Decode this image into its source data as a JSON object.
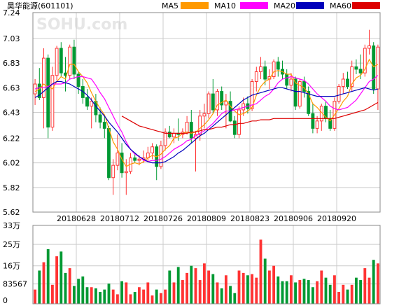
{
  "chart_data": [
    {
      "type": "candlestick",
      "title": "昊华能源(601101)",
      "watermark": "SOHU.com",
      "ylim": [
        5.62,
        7.24
      ],
      "y_ticks": [
        "7.24",
        "7.03",
        "6.83",
        "6.63",
        "6.43",
        "6.22",
        "6.02",
        "5.82",
        "5.62"
      ],
      "x_tick_labels": [
        "20180628",
        "20180712",
        "20180726",
        "20180809",
        "20180823",
        "20180906",
        "20180920"
      ],
      "legend": [
        {
          "name": "MA5",
          "color": "#ff9900"
        },
        {
          "name": "MA10",
          "color": "#ff00ff"
        },
        {
          "name": "MA20",
          "color": "#0000bb"
        },
        {
          "name": "MA60",
          "color": "#dd0000"
        }
      ],
      "up_color": "#ff3333",
      "down_color": "#009933",
      "candles": [
        {
          "o": 6.58,
          "h": 6.7,
          "l": 6.49,
          "c": 6.66
        },
        {
          "o": 6.66,
          "h": 6.79,
          "l": 6.53,
          "c": 6.55
        },
        {
          "o": 6.55,
          "h": 6.95,
          "l": 6.3,
          "c": 6.87
        },
        {
          "o": 6.87,
          "h": 6.9,
          "l": 6.22,
          "c": 6.31
        },
        {
          "o": 6.31,
          "h": 6.8,
          "l": 6.28,
          "c": 6.73
        },
        {
          "o": 6.73,
          "h": 6.97,
          "l": 6.69,
          "c": 6.95
        },
        {
          "o": 6.95,
          "h": 7.0,
          "l": 6.72,
          "c": 6.75
        },
        {
          "o": 6.75,
          "h": 6.88,
          "l": 6.6,
          "c": 6.73
        },
        {
          "o": 6.73,
          "h": 6.98,
          "l": 6.7,
          "c": 6.96
        },
        {
          "o": 6.96,
          "h": 7.02,
          "l": 6.7,
          "c": 6.74
        },
        {
          "o": 6.74,
          "h": 6.76,
          "l": 6.58,
          "c": 6.64
        },
        {
          "o": 6.64,
          "h": 6.7,
          "l": 6.5,
          "c": 6.55
        },
        {
          "o": 6.55,
          "h": 6.62,
          "l": 6.45,
          "c": 6.48
        },
        {
          "o": 6.48,
          "h": 6.55,
          "l": 6.3,
          "c": 6.52
        },
        {
          "o": 6.52,
          "h": 6.58,
          "l": 6.35,
          "c": 6.41
        },
        {
          "o": 6.41,
          "h": 6.47,
          "l": 6.3,
          "c": 6.35
        },
        {
          "o": 6.35,
          "h": 6.4,
          "l": 6.22,
          "c": 6.3
        },
        {
          "o": 6.3,
          "h": 6.32,
          "l": 5.88,
          "c": 5.9
        },
        {
          "o": 5.9,
          "h": 6.05,
          "l": 5.76,
          "c": 6.0
        },
        {
          "o": 6.0,
          "h": 6.25,
          "l": 5.96,
          "c": 6.1
        },
        {
          "o": 6.1,
          "h": 6.18,
          "l": 5.9,
          "c": 5.94
        },
        {
          "o": 5.94,
          "h": 6.05,
          "l": 5.76,
          "c": 5.95
        },
        {
          "o": 5.95,
          "h": 6.1,
          "l": 5.93,
          "c": 6.06
        },
        {
          "o": 6.06,
          "h": 6.1,
          "l": 6.02,
          "c": 6.04
        },
        {
          "o": 6.04,
          "h": 6.08,
          "l": 6.0,
          "c": 6.05
        },
        {
          "o": 6.05,
          "h": 6.12,
          "l": 6.02,
          "c": 6.06
        },
        {
          "o": 6.06,
          "h": 6.15,
          "l": 6.03,
          "c": 6.1
        },
        {
          "o": 6.1,
          "h": 6.18,
          "l": 6.05,
          "c": 6.15
        },
        {
          "o": 6.15,
          "h": 6.17,
          "l": 5.88,
          "c": 5.99
        },
        {
          "o": 5.99,
          "h": 6.2,
          "l": 5.97,
          "c": 6.16
        },
        {
          "o": 6.16,
          "h": 6.3,
          "l": 6.12,
          "c": 6.27
        },
        {
          "o": 6.27,
          "h": 6.32,
          "l": 6.22,
          "c": 6.23
        },
        {
          "o": 6.23,
          "h": 6.3,
          "l": 6.18,
          "c": 6.26
        },
        {
          "o": 6.26,
          "h": 6.38,
          "l": 6.2,
          "c": 6.25
        },
        {
          "o": 6.25,
          "h": 6.3,
          "l": 6.22,
          "c": 6.27
        },
        {
          "o": 6.27,
          "h": 6.4,
          "l": 6.25,
          "c": 6.35
        },
        {
          "o": 6.35,
          "h": 6.45,
          "l": 6.18,
          "c": 6.22
        },
        {
          "o": 6.22,
          "h": 6.28,
          "l": 5.95,
          "c": 6.25
        },
        {
          "o": 6.25,
          "h": 6.45,
          "l": 6.2,
          "c": 6.4
        },
        {
          "o": 6.4,
          "h": 6.5,
          "l": 6.3,
          "c": 6.42
        },
        {
          "o": 6.42,
          "h": 6.6,
          "l": 6.38,
          "c": 6.58
        },
        {
          "o": 6.58,
          "h": 6.7,
          "l": 6.42,
          "c": 6.45
        },
        {
          "o": 6.45,
          "h": 6.62,
          "l": 6.4,
          "c": 6.6
        },
        {
          "o": 6.6,
          "h": 6.64,
          "l": 6.45,
          "c": 6.49
        },
        {
          "o": 6.49,
          "h": 6.58,
          "l": 6.3,
          "c": 6.52
        },
        {
          "o": 6.52,
          "h": 6.6,
          "l": 6.35,
          "c": 6.36
        },
        {
          "o": 6.36,
          "h": 6.4,
          "l": 6.22,
          "c": 6.25
        },
        {
          "o": 6.25,
          "h": 6.48,
          "l": 6.22,
          "c": 6.45
        },
        {
          "o": 6.45,
          "h": 6.55,
          "l": 6.4,
          "c": 6.5
        },
        {
          "o": 6.5,
          "h": 6.56,
          "l": 6.42,
          "c": 6.46
        },
        {
          "o": 6.46,
          "h": 6.7,
          "l": 6.44,
          "c": 6.68
        },
        {
          "o": 6.68,
          "h": 6.8,
          "l": 6.6,
          "c": 6.76
        },
        {
          "o": 6.76,
          "h": 6.88,
          "l": 6.7,
          "c": 6.8
        },
        {
          "o": 6.8,
          "h": 6.85,
          "l": 6.65,
          "c": 6.7
        },
        {
          "o": 6.7,
          "h": 6.78,
          "l": 6.62,
          "c": 6.72
        },
        {
          "o": 6.72,
          "h": 6.86,
          "l": 6.7,
          "c": 6.84
        },
        {
          "o": 6.84,
          "h": 6.88,
          "l": 6.72,
          "c": 6.78
        },
        {
          "o": 6.78,
          "h": 6.85,
          "l": 6.7,
          "c": 6.74
        },
        {
          "o": 6.74,
          "h": 6.78,
          "l": 6.62,
          "c": 6.65
        },
        {
          "o": 6.65,
          "h": 6.75,
          "l": 6.6,
          "c": 6.7
        },
        {
          "o": 6.7,
          "h": 6.72,
          "l": 6.45,
          "c": 6.48
        },
        {
          "o": 6.48,
          "h": 6.7,
          "l": 6.46,
          "c": 6.68
        },
        {
          "o": 6.68,
          "h": 6.72,
          "l": 6.55,
          "c": 6.6
        },
        {
          "o": 6.6,
          "h": 6.64,
          "l": 6.4,
          "c": 6.42
        },
        {
          "o": 6.42,
          "h": 6.5,
          "l": 6.26,
          "c": 6.3
        },
        {
          "o": 6.3,
          "h": 6.4,
          "l": 6.26,
          "c": 6.36
        },
        {
          "o": 6.36,
          "h": 6.5,
          "l": 6.28,
          "c": 6.48
        },
        {
          "o": 6.48,
          "h": 6.52,
          "l": 6.35,
          "c": 6.38
        },
        {
          "o": 6.38,
          "h": 6.45,
          "l": 6.28,
          "c": 6.3
        },
        {
          "o": 6.3,
          "h": 6.55,
          "l": 6.28,
          "c": 6.52
        },
        {
          "o": 6.52,
          "h": 6.66,
          "l": 6.5,
          "c": 6.64
        },
        {
          "o": 6.64,
          "h": 6.75,
          "l": 6.58,
          "c": 6.7
        },
        {
          "o": 6.7,
          "h": 6.76,
          "l": 6.62,
          "c": 6.64
        },
        {
          "o": 6.64,
          "h": 6.85,
          "l": 6.6,
          "c": 6.8
        },
        {
          "o": 6.8,
          "h": 6.86,
          "l": 6.74,
          "c": 6.78
        },
        {
          "o": 6.78,
          "h": 6.9,
          "l": 6.7,
          "c": 6.75
        },
        {
          "o": 6.75,
          "h": 6.98,
          "l": 6.72,
          "c": 6.95
        },
        {
          "o": 6.95,
          "h": 7.1,
          "l": 6.9,
          "c": 6.97
        },
        {
          "o": 6.97,
          "h": 7.0,
          "l": 6.58,
          "c": 6.62
        },
        {
          "o": 6.62,
          "h": 6.98,
          "l": 6.45,
          "c": 6.96
        }
      ],
      "ma_series": [
        {
          "name": "MA5",
          "values": [
            6.6,
            6.62,
            6.66,
            6.64,
            6.62,
            6.68,
            6.72,
            6.7,
            6.82,
            6.82,
            6.76,
            6.72,
            6.67,
            6.59,
            6.52,
            6.46,
            6.41,
            6.3,
            6.19,
            6.13,
            6.05,
            5.99,
            6.01,
            6.02,
            6.01,
            6.03,
            6.06,
            6.08,
            6.07,
            6.09,
            6.13,
            6.16,
            6.22,
            6.23,
            6.26,
            6.27,
            6.26,
            6.27,
            6.3,
            6.33,
            6.37,
            6.42,
            6.49,
            6.51,
            6.53,
            6.48,
            6.44,
            6.41,
            6.42,
            6.44,
            6.47,
            6.57,
            6.64,
            6.68,
            6.7,
            6.76,
            6.77,
            6.76,
            6.74,
            6.74,
            6.67,
            6.65,
            6.63,
            6.58,
            6.5,
            6.47,
            6.43,
            6.39,
            6.36,
            6.41,
            6.46,
            6.52,
            6.56,
            6.66,
            6.71,
            6.73,
            6.78,
            6.86,
            6.8,
            6.82
          ]
        },
        {
          "name": "MA10",
          "values": [
            6.62,
            6.63,
            6.63,
            6.64,
            6.66,
            6.66,
            6.66,
            6.67,
            6.7,
            6.71,
            6.72,
            6.72,
            6.71,
            6.7,
            6.65,
            6.59,
            6.54,
            6.47,
            6.4,
            6.33,
            6.27,
            6.19,
            6.13,
            6.09,
            6.07,
            6.04,
            6.03,
            6.04,
            6.04,
            6.05,
            6.07,
            6.1,
            6.13,
            6.15,
            6.17,
            6.2,
            6.21,
            6.24,
            6.26,
            6.28,
            6.31,
            6.34,
            6.38,
            6.42,
            6.44,
            6.44,
            6.45,
            6.46,
            6.47,
            6.48,
            6.49,
            6.5,
            6.53,
            6.56,
            6.58,
            6.62,
            6.67,
            6.7,
            6.71,
            6.72,
            6.71,
            6.7,
            6.69,
            6.66,
            6.62,
            6.58,
            6.55,
            6.52,
            6.48,
            6.46,
            6.45,
            6.46,
            6.47,
            6.5,
            6.53,
            6.58,
            6.63,
            6.68,
            6.7,
            6.73
          ]
        },
        {
          "name": "MA20",
          "values": [
            6.55,
            6.57,
            6.6,
            6.63,
            6.66,
            6.68,
            6.68,
            6.67,
            6.66,
            6.64,
            6.62,
            6.6,
            6.57,
            6.53,
            6.48,
            6.44,
            6.4,
            6.35,
            6.31,
            6.27,
            6.22,
            6.17,
            6.13,
            6.1,
            6.07,
            6.05,
            6.03,
            6.02,
            6.02,
            6.02,
            6.03,
            6.05,
            6.07,
            6.1,
            6.12,
            6.15,
            6.18,
            6.21,
            6.24,
            6.26,
            6.29,
            6.32,
            6.35,
            6.38,
            6.41,
            6.44,
            6.47,
            6.5,
            6.53,
            6.55,
            6.57,
            6.58,
            6.59,
            6.6,
            6.61,
            6.62,
            6.63,
            6.63,
            6.62,
            6.61,
            6.6,
            6.6,
            6.59,
            6.58,
            6.57,
            6.56,
            6.56,
            6.56,
            6.56,
            6.56,
            6.57,
            6.58,
            6.59,
            6.6,
            6.61,
            6.62,
            6.63,
            6.62,
            6.61,
            6.62
          ]
        },
        {
          "name": "MA60",
          "values": [
            null,
            null,
            null,
            null,
            null,
            null,
            null,
            null,
            null,
            null,
            null,
            null,
            null,
            null,
            null,
            null,
            null,
            null,
            null,
            null,
            6.4,
            6.38,
            6.36,
            6.34,
            6.32,
            6.31,
            6.3,
            6.29,
            6.28,
            6.27,
            6.26,
            6.26,
            6.26,
            6.26,
            6.26,
            6.26,
            6.27,
            6.27,
            6.28,
            6.29,
            6.29,
            6.3,
            6.31,
            6.31,
            6.32,
            6.33,
            6.33,
            6.34,
            6.34,
            6.35,
            6.36,
            6.36,
            6.37,
            6.37,
            6.37,
            6.38,
            6.38,
            6.38,
            6.38,
            6.38,
            6.38,
            6.38,
            6.38,
            6.38,
            6.38,
            6.38,
            6.38,
            6.38,
            6.38,
            6.38,
            6.39,
            6.4,
            6.41,
            6.42,
            6.43,
            6.44,
            6.45,
            6.47,
            6.49,
            6.51
          ]
        }
      ]
    },
    {
      "type": "bar",
      "title": "",
      "ylim": [
        0,
        330000
      ],
      "y_ticks": [
        "33万",
        "25万",
        "16万",
        "83567",
        "0"
      ],
      "y_tick_values": [
        330000,
        250000,
        160000,
        83567,
        0
      ],
      "up_color": "#ff3333",
      "down_color": "#009933",
      "values": [
        60000,
        140000,
        175000,
        230000,
        80000,
        200000,
        220000,
        130000,
        150000,
        75000,
        105000,
        115000,
        70000,
        70000,
        65000,
        50000,
        60000,
        85000,
        60000,
        40000,
        95000,
        90000,
        40000,
        50000,
        70000,
        60000,
        90000,
        35000,
        60000,
        45000,
        60000,
        140000,
        90000,
        155000,
        100000,
        130000,
        160000,
        150000,
        100000,
        170000,
        140000,
        125000,
        90000,
        65000,
        120000,
        75000,
        45000,
        140000,
        130000,
        120000,
        125000,
        110000,
        270000,
        190000,
        140000,
        160000,
        115000,
        95000,
        95000,
        120000,
        90000,
        100000,
        105000,
        100000,
        70000,
        95000,
        140000,
        110000,
        80000,
        120000,
        50000,
        80000,
        60000,
        80000,
        110000,
        100000,
        150000,
        110000,
        185000,
        170000
      ]
    }
  ]
}
